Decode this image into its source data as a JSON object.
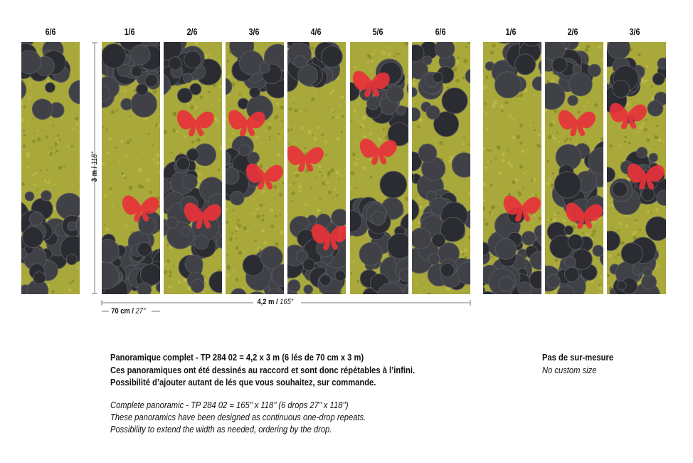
{
  "labels": {
    "left": "6/6",
    "main": [
      "1/6",
      "2/6",
      "3/6",
      "4/6",
      "5/6",
      "6/6"
    ],
    "right": [
      "1/6",
      "2/6",
      "3/6"
    ]
  },
  "dimensions": {
    "height_metric": "3 m /",
    "height_imperial": "118\"",
    "width_metric": "4,2 m /",
    "width_imperial": "165\"",
    "drop_metric": "70 cm /",
    "drop_imperial": "27\""
  },
  "description": {
    "fr_line1": "Panoramique complet - TP 284 02 = 4,2 x 3 m (6 lés de 70 cm x 3 m)",
    "fr_line2": "Ces panoramiques ont été dessinés au raccord et sont donc répétables à l’infini.",
    "fr_line3": "Possibilité d’ajouter autant de lés que vous souhaitez, sur commande.",
    "en_line1": "Complete panoramic - TP 284 02 = 165’’ x 118’’ (6 drops 27’’ x 118’’)",
    "en_line2": "These panoramics have been designed as continuous one-drop repeats.",
    "en_line3": "Possibility to extend the width as needed, ordering by the drop."
  },
  "custom": {
    "fr": "Pas de sur-mesure",
    "en": "No custom size"
  },
  "colors": {
    "moss": "#a9a83a",
    "moss_dark": "#7f7e22",
    "slate": "#3f4147",
    "slate_dark": "#2a2c31",
    "butterfly": "#e8323a"
  }
}
